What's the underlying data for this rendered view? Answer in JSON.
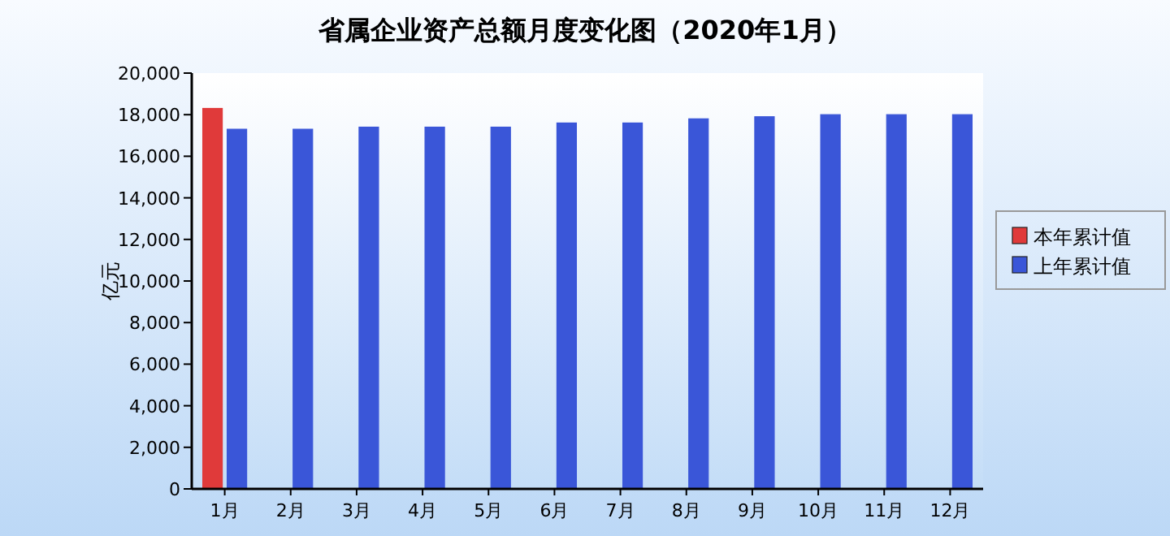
{
  "chart_data": {
    "type": "bar",
    "title": "省属企业资产总额月度变化图（2020年1月）",
    "ylabel": "亿元",
    "categories": [
      "1月",
      "2月",
      "3月",
      "4月",
      "5月",
      "6月",
      "7月",
      "8月",
      "9月",
      "10月",
      "11月",
      "12月"
    ],
    "series": [
      {
        "name": "本年累计值",
        "color": "#e03a3a",
        "values": [
          18300,
          null,
          null,
          null,
          null,
          null,
          null,
          null,
          null,
          null,
          null,
          null
        ]
      },
      {
        "name": "上年累计值",
        "color": "#3a56d8",
        "values": [
          17300,
          17300,
          17400,
          17400,
          17400,
          17600,
          17600,
          17800,
          17900,
          18000,
          18000,
          18000
        ]
      }
    ],
    "ylim": [
      0,
      20000
    ],
    "yticks": [
      0,
      {
        "value": 2000,
        "label": "2,000"
      },
      {
        "value": 4000,
        "label": "4,000"
      },
      {
        "value": 6000,
        "label": "6,000"
      },
      {
        "value": 8000,
        "label": "8,000"
      },
      {
        "value": 10000,
        "label": "10,000"
      },
      {
        "value": 12000,
        "label": "12,000"
      },
      {
        "value": 14000,
        "label": "14,000"
      },
      {
        "value": 16000,
        "label": "16,000"
      },
      {
        "value": 18000,
        "label": "18,000"
      },
      {
        "value": 20000,
        "label": "20,000"
      }
    ],
    "grid": false,
    "legend": "right"
  }
}
